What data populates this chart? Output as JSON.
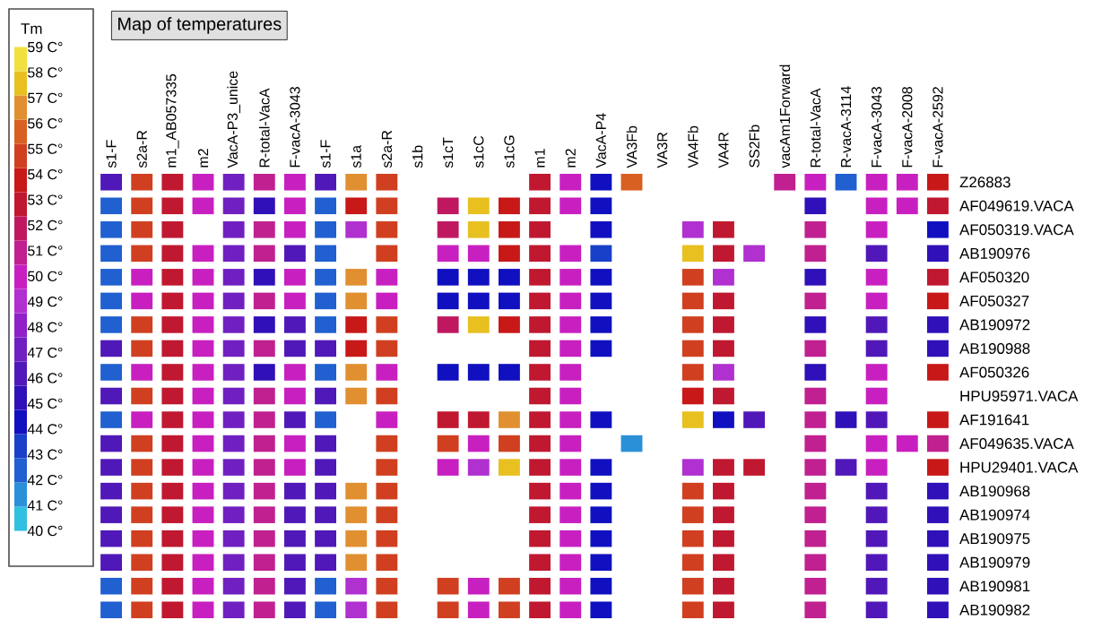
{
  "chart_data": {
    "type": "heatmap",
    "title": "Map of temperatures",
    "clabel": "Tm",
    "categories": [
      "s1-F",
      "s2a-R",
      "m1_AB057335",
      "m2",
      "VacA-P3_unice",
      "R-total-VacA",
      "F-vacA-3043",
      "s1-F",
      "s1a",
      "s2a-R",
      "s1b",
      "s1cT",
      "s1cC",
      "s1cG",
      "m1",
      "m2",
      "VacA-P4",
      "VA3Fb",
      "VA3R",
      "VA4Fb",
      "VA4R",
      "SS2Fb",
      "vacAm1Forward",
      "R-total-VacA",
      "R-vacA-3114",
      "F-vacA-3043",
      "F-vacA-2008",
      "F-vacA-2592"
    ],
    "y_categories": [
      "Z26883",
      "AF049619.VACA",
      "AF050319.VACA",
      "AB190976",
      "AF050320",
      "AF050327",
      "AB190972",
      "AB190988",
      "AF050326",
      "HPU95971.VACA",
      "AF191641",
      "AF049635.VACA",
      "HPU29401.VACA",
      "AB190968",
      "AB190974",
      "AB190975",
      "AB190979",
      "AB190981",
      "AB190982"
    ],
    "cells": [
      [
        46,
        55,
        53,
        50,
        47,
        51,
        50,
        46,
        57,
        55,
        null,
        null,
        null,
        null,
        53,
        50,
        44,
        56,
        null,
        null,
        null,
        null,
        51,
        50,
        42,
        50,
        50,
        54
      ],
      [
        42,
        55,
        53,
        50,
        47,
        45,
        50,
        42,
        54,
        55,
        null,
        52,
        58,
        54,
        53,
        50,
        44,
        null,
        null,
        null,
        null,
        null,
        null,
        45,
        null,
        50,
        50,
        53
      ],
      [
        42,
        55,
        53,
        null,
        47,
        51,
        50,
        42,
        49,
        55,
        null,
        52,
        58,
        54,
        53,
        null,
        44,
        null,
        null,
        49,
        53,
        null,
        null,
        51,
        null,
        50,
        null,
        44
      ],
      [
        42,
        55,
        53,
        50,
        47,
        51,
        46,
        42,
        null,
        55,
        null,
        50,
        50,
        54,
        53,
        50,
        43,
        null,
        null,
        58,
        53,
        49,
        null,
        51,
        null,
        46,
        null,
        45
      ],
      [
        42,
        50,
        53,
        50,
        47,
        45,
        50,
        42,
        57,
        50,
        null,
        44,
        44,
        44,
        53,
        50,
        44,
        null,
        null,
        55,
        49,
        null,
        null,
        45,
        null,
        50,
        null,
        53
      ],
      [
        42,
        50,
        53,
        50,
        47,
        51,
        50,
        42,
        57,
        50,
        null,
        44,
        44,
        44,
        53,
        50,
        44,
        null,
        null,
        55,
        53,
        null,
        null,
        51,
        null,
        50,
        null,
        54
      ],
      [
        42,
        55,
        53,
        50,
        47,
        45,
        46,
        42,
        54,
        55,
        null,
        52,
        58,
        54,
        53,
        50,
        44,
        null,
        null,
        55,
        53,
        null,
        null,
        45,
        null,
        46,
        null,
        45
      ],
      [
        46,
        55,
        53,
        50,
        47,
        51,
        46,
        46,
        54,
        55,
        null,
        null,
        null,
        null,
        53,
        50,
        44,
        null,
        null,
        55,
        53,
        null,
        null,
        51,
        null,
        46,
        null,
        45
      ],
      [
        42,
        50,
        53,
        50,
        47,
        45,
        50,
        42,
        57,
        50,
        null,
        44,
        44,
        44,
        53,
        50,
        null,
        null,
        null,
        55,
        49,
        null,
        null,
        45,
        null,
        50,
        null,
        54
      ],
      [
        46,
        55,
        53,
        50,
        47,
        51,
        50,
        46,
        57,
        55,
        null,
        null,
        null,
        null,
        53,
        50,
        null,
        null,
        null,
        54,
        53,
        null,
        null,
        51,
        null,
        50,
        null,
        null
      ],
      [
        42,
        50,
        53,
        50,
        47,
        51,
        46,
        42,
        null,
        50,
        null,
        53,
        53,
        57,
        53,
        50,
        44,
        null,
        null,
        58,
        44,
        46,
        null,
        51,
        45,
        46,
        null,
        54
      ],
      [
        46,
        55,
        53,
        50,
        47,
        51,
        50,
        46,
        null,
        55,
        null,
        55,
        50,
        55,
        53,
        50,
        null,
        41,
        null,
        null,
        null,
        null,
        null,
        51,
        null,
        50,
        50,
        51
      ],
      [
        46,
        55,
        53,
        50,
        47,
        51,
        50,
        46,
        null,
        55,
        null,
        50,
        49,
        58,
        53,
        50,
        44,
        null,
        null,
        49,
        53,
        53,
        null,
        51,
        46,
        50,
        null,
        54
      ],
      [
        46,
        55,
        53,
        50,
        47,
        51,
        46,
        46,
        57,
        55,
        null,
        null,
        null,
        null,
        53,
        50,
        44,
        null,
        null,
        55,
        53,
        null,
        null,
        51,
        null,
        46,
        null,
        45
      ],
      [
        46,
        55,
        53,
        50,
        47,
        51,
        46,
        46,
        57,
        55,
        null,
        null,
        null,
        null,
        53,
        50,
        44,
        null,
        null,
        55,
        53,
        null,
        null,
        51,
        null,
        46,
        null,
        45
      ],
      [
        46,
        55,
        53,
        50,
        47,
        51,
        46,
        46,
        57,
        55,
        null,
        null,
        null,
        null,
        53,
        50,
        44,
        null,
        null,
        55,
        53,
        null,
        null,
        51,
        null,
        46,
        null,
        45
      ],
      [
        46,
        55,
        53,
        50,
        47,
        51,
        46,
        46,
        57,
        55,
        null,
        null,
        null,
        null,
        53,
        50,
        44,
        null,
        null,
        55,
        53,
        null,
        null,
        51,
        null,
        46,
        null,
        45
      ],
      [
        42,
        55,
        53,
        50,
        47,
        51,
        46,
        42,
        49,
        55,
        null,
        55,
        50,
        55,
        53,
        50,
        44,
        null,
        null,
        55,
        53,
        null,
        null,
        51,
        null,
        46,
        null,
        45
      ],
      [
        42,
        55,
        53,
        50,
        47,
        51,
        46,
        42,
        49,
        55,
        null,
        55,
        50,
        55,
        53,
        50,
        44,
        null,
        null,
        55,
        53,
        null,
        null,
        51,
        null,
        46,
        null,
        45
      ]
    ],
    "clim": [
      40,
      59
    ],
    "cticks": [
      {
        "value": 59,
        "label": "59 C°"
      },
      {
        "value": 58,
        "label": "58 C°"
      },
      {
        "value": 57,
        "label": "57 C°"
      },
      {
        "value": 56,
        "label": "56 C°"
      },
      {
        "value": 55,
        "label": "55 C°"
      },
      {
        "value": 54,
        "label": "54 C°"
      },
      {
        "value": 53,
        "label": "53 C°"
      },
      {
        "value": 52,
        "label": "52 C°"
      },
      {
        "value": 51,
        "label": "51 C°"
      },
      {
        "value": 50,
        "label": "50 C°"
      },
      {
        "value": 49,
        "label": "49 C°"
      },
      {
        "value": 48,
        "label": "48 C°"
      },
      {
        "value": 47,
        "label": "47 C°"
      },
      {
        "value": 46,
        "label": "46 C°"
      },
      {
        "value": 45,
        "label": "45 C°"
      },
      {
        "value": 44,
        "label": "44 C°"
      },
      {
        "value": 43,
        "label": "43 C°"
      },
      {
        "value": 42,
        "label": "42 C°"
      },
      {
        "value": 41,
        "label": "41 C°"
      },
      {
        "value": 40,
        "label": "40 C°"
      }
    ]
  }
}
